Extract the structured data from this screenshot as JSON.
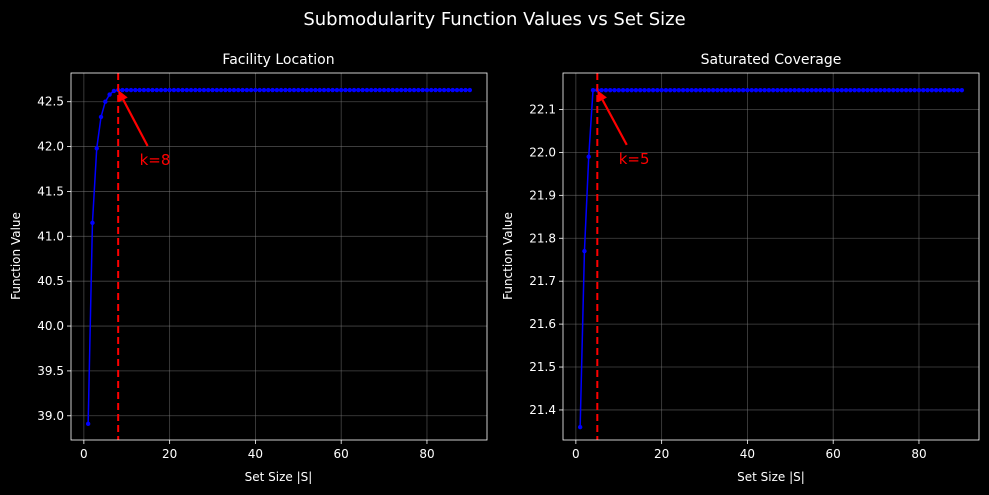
{
  "figure_title": "Submodularity Function Values vs Set Size",
  "colors": {
    "background": "#000000",
    "axes_face": "#000000",
    "axes_edge": "#ffffff",
    "text": "#ffffff",
    "series_line": "#0000ff",
    "marker": "#0000ff",
    "vline": "#ff0000",
    "annotation": "#ff0000",
    "grid": "#808080"
  },
  "chart_data": [
    {
      "type": "line",
      "title": "Facility Location",
      "xlabel": "Set Size |S|",
      "ylabel": "Function Value",
      "xlim": [
        -3,
        94
      ],
      "ylim": [
        38.73,
        42.82
      ],
      "xticks": [
        0,
        20,
        40,
        60,
        80
      ],
      "xtick_labels": [
        "0",
        "20",
        "40",
        "60",
        "80"
      ],
      "yticks": [
        39.0,
        39.5,
        40.0,
        40.5,
        41.0,
        41.5,
        42.0,
        42.5
      ],
      "ytick_labels": [
        "39.0",
        "39.5",
        "40.0",
        "40.5",
        "41.0",
        "41.5",
        "42.0",
        "42.5"
      ],
      "grid": true,
      "series": [
        {
          "x_start": 1,
          "x_end": 90,
          "y_head": [
            38.91,
            41.15,
            41.98,
            42.33,
            42.5,
            42.58,
            42.62
          ],
          "y_plateau": 42.63
        }
      ],
      "vline": {
        "x": 8
      },
      "annotation": {
        "text": "k=8",
        "xy": [
          8,
          42.63
        ],
        "xytext": [
          13,
          41.85
        ]
      }
    },
    {
      "type": "line",
      "title": "Saturated Coverage",
      "xlabel": "Set Size |S|",
      "ylabel": "Function Value",
      "xlim": [
        -3,
        94
      ],
      "ylim": [
        21.33,
        22.185
      ],
      "xticks": [
        0,
        20,
        40,
        60,
        80
      ],
      "xtick_labels": [
        "0",
        "20",
        "40",
        "60",
        "80"
      ],
      "yticks": [
        21.4,
        21.5,
        21.6,
        21.7,
        21.8,
        21.9,
        22.0,
        22.1
      ],
      "ytick_labels": [
        "21.4",
        "21.5",
        "21.6",
        "21.7",
        "21.8",
        "21.9",
        "22.0",
        "22.1"
      ],
      "grid": true,
      "series": [
        {
          "x_start": 1,
          "x_end": 90,
          "y_head": [
            21.36,
            21.77,
            21.99,
            22.145
          ],
          "y_plateau": 22.145
        }
      ],
      "vline": {
        "x": 5
      },
      "annotation": {
        "text": "k=5",
        "xy": [
          5,
          22.145
        ],
        "xytext": [
          10,
          21.985
        ]
      }
    }
  ]
}
